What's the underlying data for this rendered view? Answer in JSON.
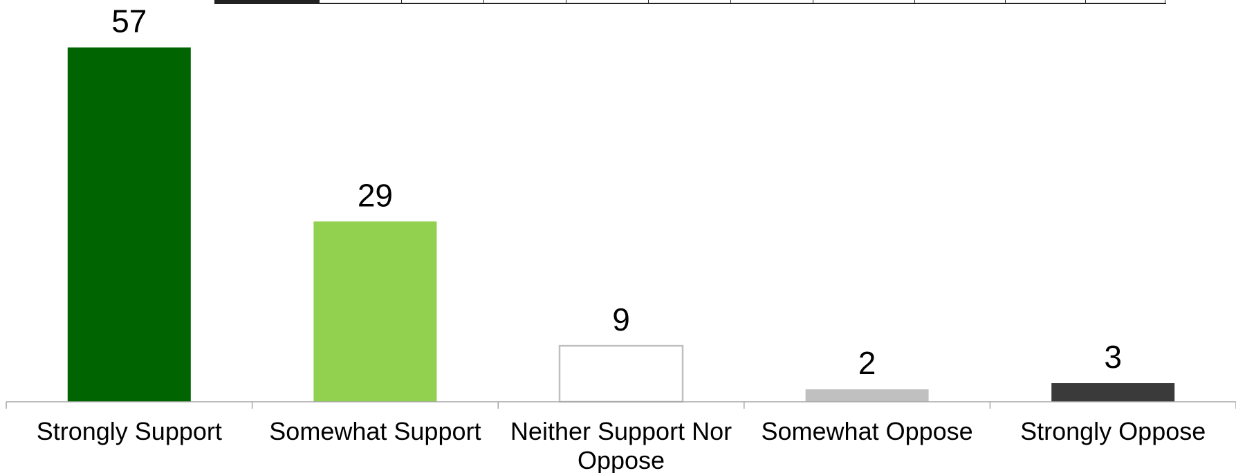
{
  "chart_data": {
    "type": "bar",
    "title": "",
    "xlabel": "",
    "ylabel": "",
    "categories": [
      "Strongly Support",
      "Somewhat Support",
      "Neither Support Nor Oppose",
      "Somewhat Oppose",
      "Strongly Oppose"
    ],
    "values": [
      57,
      29,
      9,
      2,
      3
    ],
    "colors": [
      "#006400",
      "#92D050",
      "#FFFFFF",
      "#C0C0C0",
      "#3A3A3A"
    ],
    "bar_outline": [
      "none",
      "none",
      "#BFBFBF",
      "none",
      "none"
    ],
    "ylim": [
      0,
      60
    ],
    "grid": false,
    "legend": "none"
  }
}
